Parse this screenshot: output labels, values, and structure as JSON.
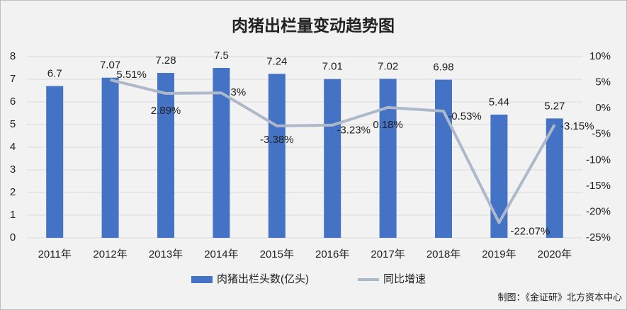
{
  "chart_data": {
    "type": "bar-line",
    "title": "肉猪出栏量变动趋势图",
    "categories": [
      "2011年",
      "2012年",
      "2013年",
      "2014年",
      "2015年",
      "2016年",
      "2017年",
      "2018年",
      "2019年",
      "2020年"
    ],
    "series": [
      {
        "name": "肉猪出栏头数(亿头)",
        "type": "bar",
        "color": "#4472c4",
        "axis": "y",
        "values": [
          6.7,
          7.07,
          7.28,
          7.5,
          7.24,
          7.01,
          7.02,
          6.98,
          5.44,
          5.27
        ]
      },
      {
        "name": "同比增速",
        "type": "line",
        "color": "#adb9ca",
        "axis": "y2",
        "values": [
          null,
          5.51,
          2.89,
          3,
          -3.38,
          -3.23,
          0.18,
          -0.53,
          -22.07,
          -3.15
        ],
        "value_labels": [
          null,
          "5.51%",
          "2.89%",
          "3%",
          "-3.38%",
          "-3.23%",
          "0.18%",
          "-0.53%",
          "-22.07%",
          "-3.15%"
        ]
      }
    ],
    "ylim": [
      0,
      8
    ],
    "yticks": [
      0,
      1,
      2,
      3,
      4,
      5,
      6,
      7,
      8
    ],
    "y2lim": [
      -25,
      10
    ],
    "y2ticks": [
      {
        "value": -25,
        "label": "-25%"
      },
      {
        "value": -20,
        "label": "-20%"
      },
      {
        "value": -15,
        "label": "-15%"
      },
      {
        "value": -10,
        "label": "-10%"
      },
      {
        "value": -5,
        "label": "-5%"
      },
      {
        "value": 0,
        "label": "0%"
      },
      {
        "value": 5,
        "label": "5%"
      },
      {
        "value": 10,
        "label": "10%"
      }
    ],
    "grid": true,
    "legend": "bottom",
    "source": "制图：《金证研》北方资本中心"
  }
}
